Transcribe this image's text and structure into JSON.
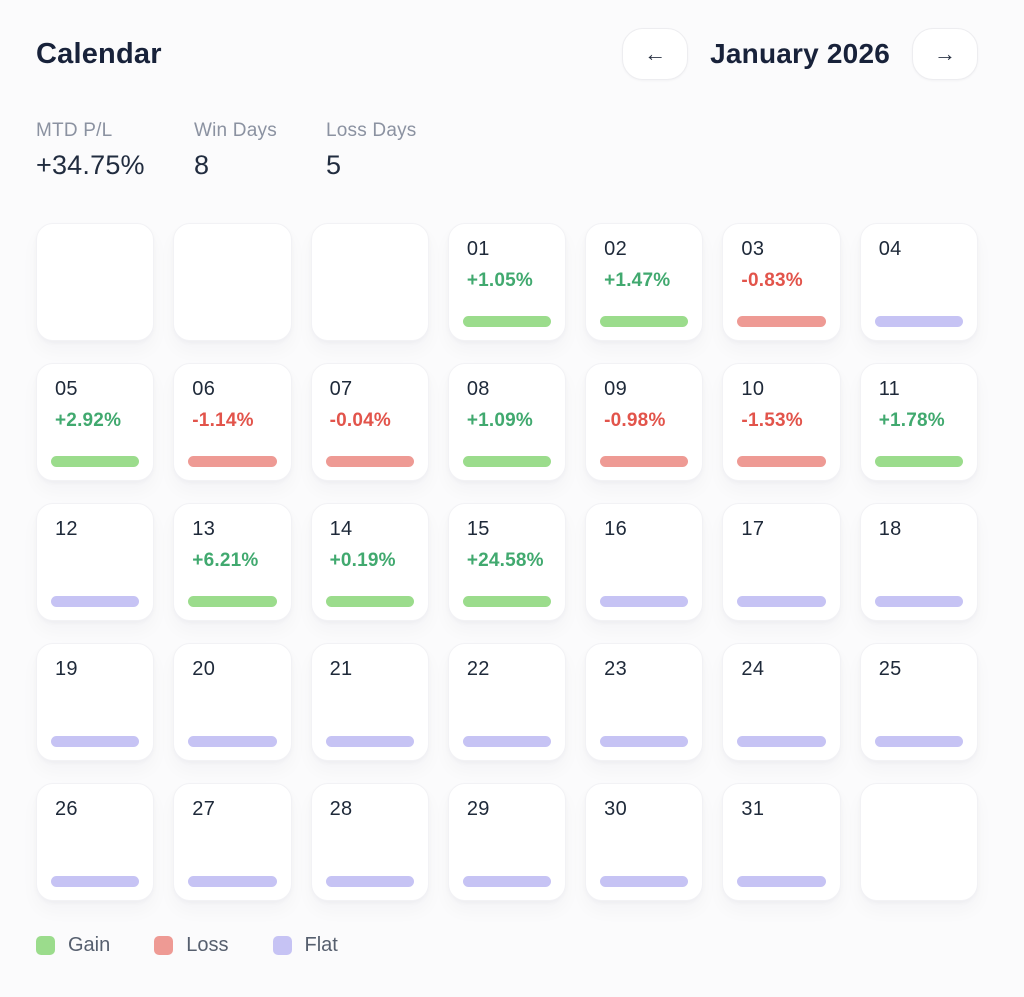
{
  "header": {
    "title": "Calendar",
    "month_label": "January 2026",
    "prev_arrow": "←",
    "next_arrow": "→"
  },
  "stats": [
    {
      "label": "MTD P/L",
      "value": "+34.75%"
    },
    {
      "label": "Win Days",
      "value": "8"
    },
    {
      "label": "Loss Days",
      "value": "5"
    }
  ],
  "calendar": {
    "cells": [
      {
        "day": "",
        "pct": "",
        "status": "empty"
      },
      {
        "day": "",
        "pct": "",
        "status": "empty"
      },
      {
        "day": "",
        "pct": "",
        "status": "empty"
      },
      {
        "day": "01",
        "pct": "+1.05%",
        "status": "gain"
      },
      {
        "day": "02",
        "pct": "+1.47%",
        "status": "gain"
      },
      {
        "day": "03",
        "pct": "-0.83%",
        "status": "loss"
      },
      {
        "day": "04",
        "pct": "",
        "status": "flat"
      },
      {
        "day": "05",
        "pct": "+2.92%",
        "status": "gain"
      },
      {
        "day": "06",
        "pct": "-1.14%",
        "status": "loss"
      },
      {
        "day": "07",
        "pct": "-0.04%",
        "status": "loss"
      },
      {
        "day": "08",
        "pct": "+1.09%",
        "status": "gain"
      },
      {
        "day": "09",
        "pct": "-0.98%",
        "status": "loss"
      },
      {
        "day": "10",
        "pct": "-1.53%",
        "status": "loss"
      },
      {
        "day": "11",
        "pct": "+1.78%",
        "status": "gain"
      },
      {
        "day": "12",
        "pct": "",
        "status": "flat"
      },
      {
        "day": "13",
        "pct": "+6.21%",
        "status": "gain"
      },
      {
        "day": "14",
        "pct": "+0.19%",
        "status": "gain"
      },
      {
        "day": "15",
        "pct": "+24.58%",
        "status": "gain"
      },
      {
        "day": "16",
        "pct": "",
        "status": "flat"
      },
      {
        "day": "17",
        "pct": "",
        "status": "flat"
      },
      {
        "day": "18",
        "pct": "",
        "status": "flat"
      },
      {
        "day": "19",
        "pct": "",
        "status": "flat"
      },
      {
        "day": "20",
        "pct": "",
        "status": "flat"
      },
      {
        "day": "21",
        "pct": "",
        "status": "flat"
      },
      {
        "day": "22",
        "pct": "",
        "status": "flat"
      },
      {
        "day": "23",
        "pct": "",
        "status": "flat"
      },
      {
        "day": "24",
        "pct": "",
        "status": "flat"
      },
      {
        "day": "25",
        "pct": "",
        "status": "flat"
      },
      {
        "day": "26",
        "pct": "",
        "status": "flat"
      },
      {
        "day": "27",
        "pct": "",
        "status": "flat"
      },
      {
        "day": "28",
        "pct": "",
        "status": "flat"
      },
      {
        "day": "29",
        "pct": "",
        "status": "flat"
      },
      {
        "day": "30",
        "pct": "",
        "status": "flat"
      },
      {
        "day": "31",
        "pct": "",
        "status": "flat"
      },
      {
        "day": "",
        "pct": "",
        "status": "empty"
      }
    ]
  },
  "legend": [
    {
      "label": "Gain",
      "status": "gain"
    },
    {
      "label": "Loss",
      "status": "loss"
    },
    {
      "label": "Flat",
      "status": "flat"
    }
  ],
  "colors": {
    "gain_text": "#41a96f",
    "loss_text": "#e2544b",
    "gain_bar": "#9bdc8c",
    "loss_bar": "#ee9a94",
    "flat_bar": "#c6c3f4"
  }
}
